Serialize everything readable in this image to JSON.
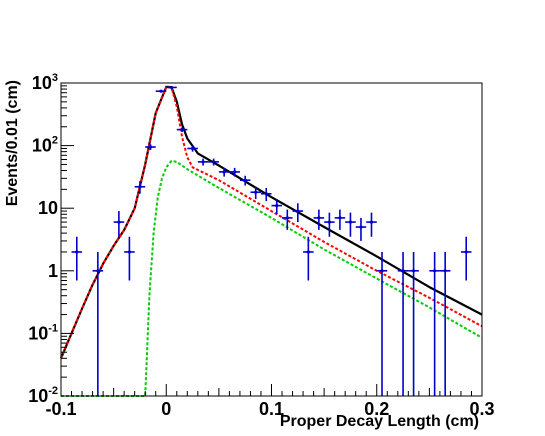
{
  "chart_data": {
    "type": "scatter",
    "title": "",
    "xlabel": "Proper Decay Length (cm)",
    "ylabel": "Events/0.01 (cm)",
    "xlim": [
      -0.1,
      0.3
    ],
    "ylim": [
      0.01,
      1000
    ],
    "yscale": "log",
    "grid": false,
    "x_ticks": [
      {
        "value": -0.1,
        "label": "-0.1"
      },
      {
        "value": 0,
        "label": "0"
      },
      {
        "value": 0.1,
        "label": "0.1"
      },
      {
        "value": 0.2,
        "label": "0.2"
      },
      {
        "value": 0.3,
        "label": "0.3"
      }
    ],
    "y_ticks": [
      {
        "value": 0.01,
        "base": "10",
        "exp": "-2"
      },
      {
        "value": 0.1,
        "base": "10",
        "exp": "-1"
      },
      {
        "value": 1,
        "base": "1",
        "exp": ""
      },
      {
        "value": 10,
        "base": "10",
        "exp": ""
      },
      {
        "value": 100,
        "base": "10",
        "exp": "2"
      },
      {
        "value": 1000,
        "base": "10",
        "exp": "3"
      }
    ],
    "series": [
      {
        "kind": "points",
        "color": "#0000cc",
        "points": [
          {
            "x": -0.085,
            "y": 2,
            "ylo": 0.7,
            "yhi": 3.5
          },
          {
            "x": -0.065,
            "y": 1,
            "ylo": 0.01,
            "yhi": 2
          },
          {
            "x": -0.045,
            "y": 6,
            "ylo": 3.5,
            "yhi": 9
          },
          {
            "x": -0.035,
            "y": 2,
            "ylo": 0.7,
            "yhi": 3.5
          },
          {
            "x": -0.025,
            "y": 22,
            "ylo": 17,
            "yhi": 27
          },
          {
            "x": -0.015,
            "y": 95,
            "ylo": 85,
            "yhi": 105
          },
          {
            "x": -0.005,
            "y": 740,
            "ylo": 715,
            "yhi": 765
          },
          {
            "x": 0.005,
            "y": 850,
            "ylo": 820,
            "yhi": 880
          },
          {
            "x": 0.015,
            "y": 180,
            "ylo": 165,
            "yhi": 195
          },
          {
            "x": 0.025,
            "y": 90,
            "ylo": 80,
            "yhi": 100
          },
          {
            "x": 0.035,
            "y": 55,
            "ylo": 48,
            "yhi": 62
          },
          {
            "x": 0.045,
            "y": 55,
            "ylo": 48,
            "yhi": 62
          },
          {
            "x": 0.055,
            "y": 38,
            "ylo": 32,
            "yhi": 44
          },
          {
            "x": 0.065,
            "y": 38,
            "ylo": 32,
            "yhi": 44
          },
          {
            "x": 0.075,
            "y": 28,
            "ylo": 23,
            "yhi": 33
          },
          {
            "x": 0.085,
            "y": 18,
            "ylo": 14,
            "yhi": 22
          },
          {
            "x": 0.095,
            "y": 17,
            "ylo": 13,
            "yhi": 21
          },
          {
            "x": 0.105,
            "y": 11,
            "ylo": 8,
            "yhi": 14
          },
          {
            "x": 0.115,
            "y": 7,
            "ylo": 4.5,
            "yhi": 9.5
          },
          {
            "x": 0.125,
            "y": 9,
            "ylo": 6,
            "yhi": 12
          },
          {
            "x": 0.135,
            "y": 2,
            "ylo": 0.7,
            "yhi": 3.5
          },
          {
            "x": 0.145,
            "y": 7,
            "ylo": 4.5,
            "yhi": 9.5
          },
          {
            "x": 0.155,
            "y": 6,
            "ylo": 3.5,
            "yhi": 8.5
          },
          {
            "x": 0.165,
            "y": 7,
            "ylo": 4.5,
            "yhi": 9.5
          },
          {
            "x": 0.175,
            "y": 6,
            "ylo": 3.5,
            "yhi": 8.5
          },
          {
            "x": 0.185,
            "y": 5,
            "ylo": 3,
            "yhi": 7
          },
          {
            "x": 0.195,
            "y": 6,
            "ylo": 3.5,
            "yhi": 8.5
          },
          {
            "x": 0.205,
            "y": 1,
            "ylo": 0.01,
            "yhi": 2
          },
          {
            "x": 0.225,
            "y": 1,
            "ylo": 0.01,
            "yhi": 2
          },
          {
            "x": 0.235,
            "y": 1,
            "ylo": 0.01,
            "yhi": 2
          },
          {
            "x": 0.255,
            "y": 1,
            "ylo": 0.01,
            "yhi": 2
          },
          {
            "x": 0.265,
            "y": 1,
            "ylo": 0.01,
            "yhi": 2
          },
          {
            "x": 0.285,
            "y": 2,
            "ylo": 0.7,
            "yhi": 3.5
          }
        ]
      },
      {
        "kind": "curve",
        "color": "#000000",
        "dash": "",
        "points": [
          [
            -0.1,
            0.04
          ],
          [
            -0.09,
            0.1
          ],
          [
            -0.08,
            0.25
          ],
          [
            -0.07,
            0.6
          ],
          [
            -0.06,
            1.3
          ],
          [
            -0.05,
            2.5
          ],
          [
            -0.04,
            4.5
          ],
          [
            -0.03,
            10
          ],
          [
            -0.02,
            50
          ],
          [
            -0.01,
            330
          ],
          [
            0,
            870
          ],
          [
            0.005,
            860
          ],
          [
            0.01,
            500
          ],
          [
            0.015,
            220
          ],
          [
            0.02,
            130
          ],
          [
            0.03,
            75
          ],
          [
            0.05,
            48
          ],
          [
            0.1,
            15
          ],
          [
            0.15,
            5
          ],
          [
            0.2,
            1.7
          ],
          [
            0.25,
            0.55
          ],
          [
            0.3,
            0.2
          ]
        ]
      },
      {
        "kind": "curve",
        "color": "#ff0000",
        "dash": "3,2",
        "points": [
          [
            -0.1,
            0.04
          ],
          [
            -0.09,
            0.1
          ],
          [
            -0.08,
            0.25
          ],
          [
            -0.07,
            0.6
          ],
          [
            -0.06,
            1.3
          ],
          [
            -0.05,
            2.5
          ],
          [
            -0.04,
            4.5
          ],
          [
            -0.03,
            10
          ],
          [
            -0.02,
            50
          ],
          [
            -0.01,
            330
          ],
          [
            0,
            860
          ],
          [
            0.005,
            840
          ],
          [
            0.01,
            420
          ],
          [
            0.015,
            140
          ],
          [
            0.02,
            65
          ],
          [
            0.025,
            45
          ],
          [
            0.05,
            28
          ],
          [
            0.1,
            9
          ],
          [
            0.15,
            2.9
          ],
          [
            0.2,
            1
          ],
          [
            0.25,
            0.37
          ],
          [
            0.3,
            0.13
          ]
        ]
      },
      {
        "kind": "curve",
        "color": "#00cc00",
        "dash": "3,2",
        "points": [
          [
            -0.1,
            0.01
          ],
          [
            -0.02,
            0.01
          ],
          [
            -0.016,
            0.4
          ],
          [
            -0.012,
            4
          ],
          [
            -0.008,
            15
          ],
          [
            -0.004,
            30
          ],
          [
            0,
            45
          ],
          [
            0.005,
            57
          ],
          [
            0.01,
            55
          ],
          [
            0.02,
            42
          ],
          [
            0.05,
            21
          ],
          [
            0.1,
            7
          ],
          [
            0.15,
            2.2
          ],
          [
            0.2,
            0.75
          ],
          [
            0.25,
            0.26
          ],
          [
            0.3,
            0.085
          ]
        ]
      }
    ]
  }
}
